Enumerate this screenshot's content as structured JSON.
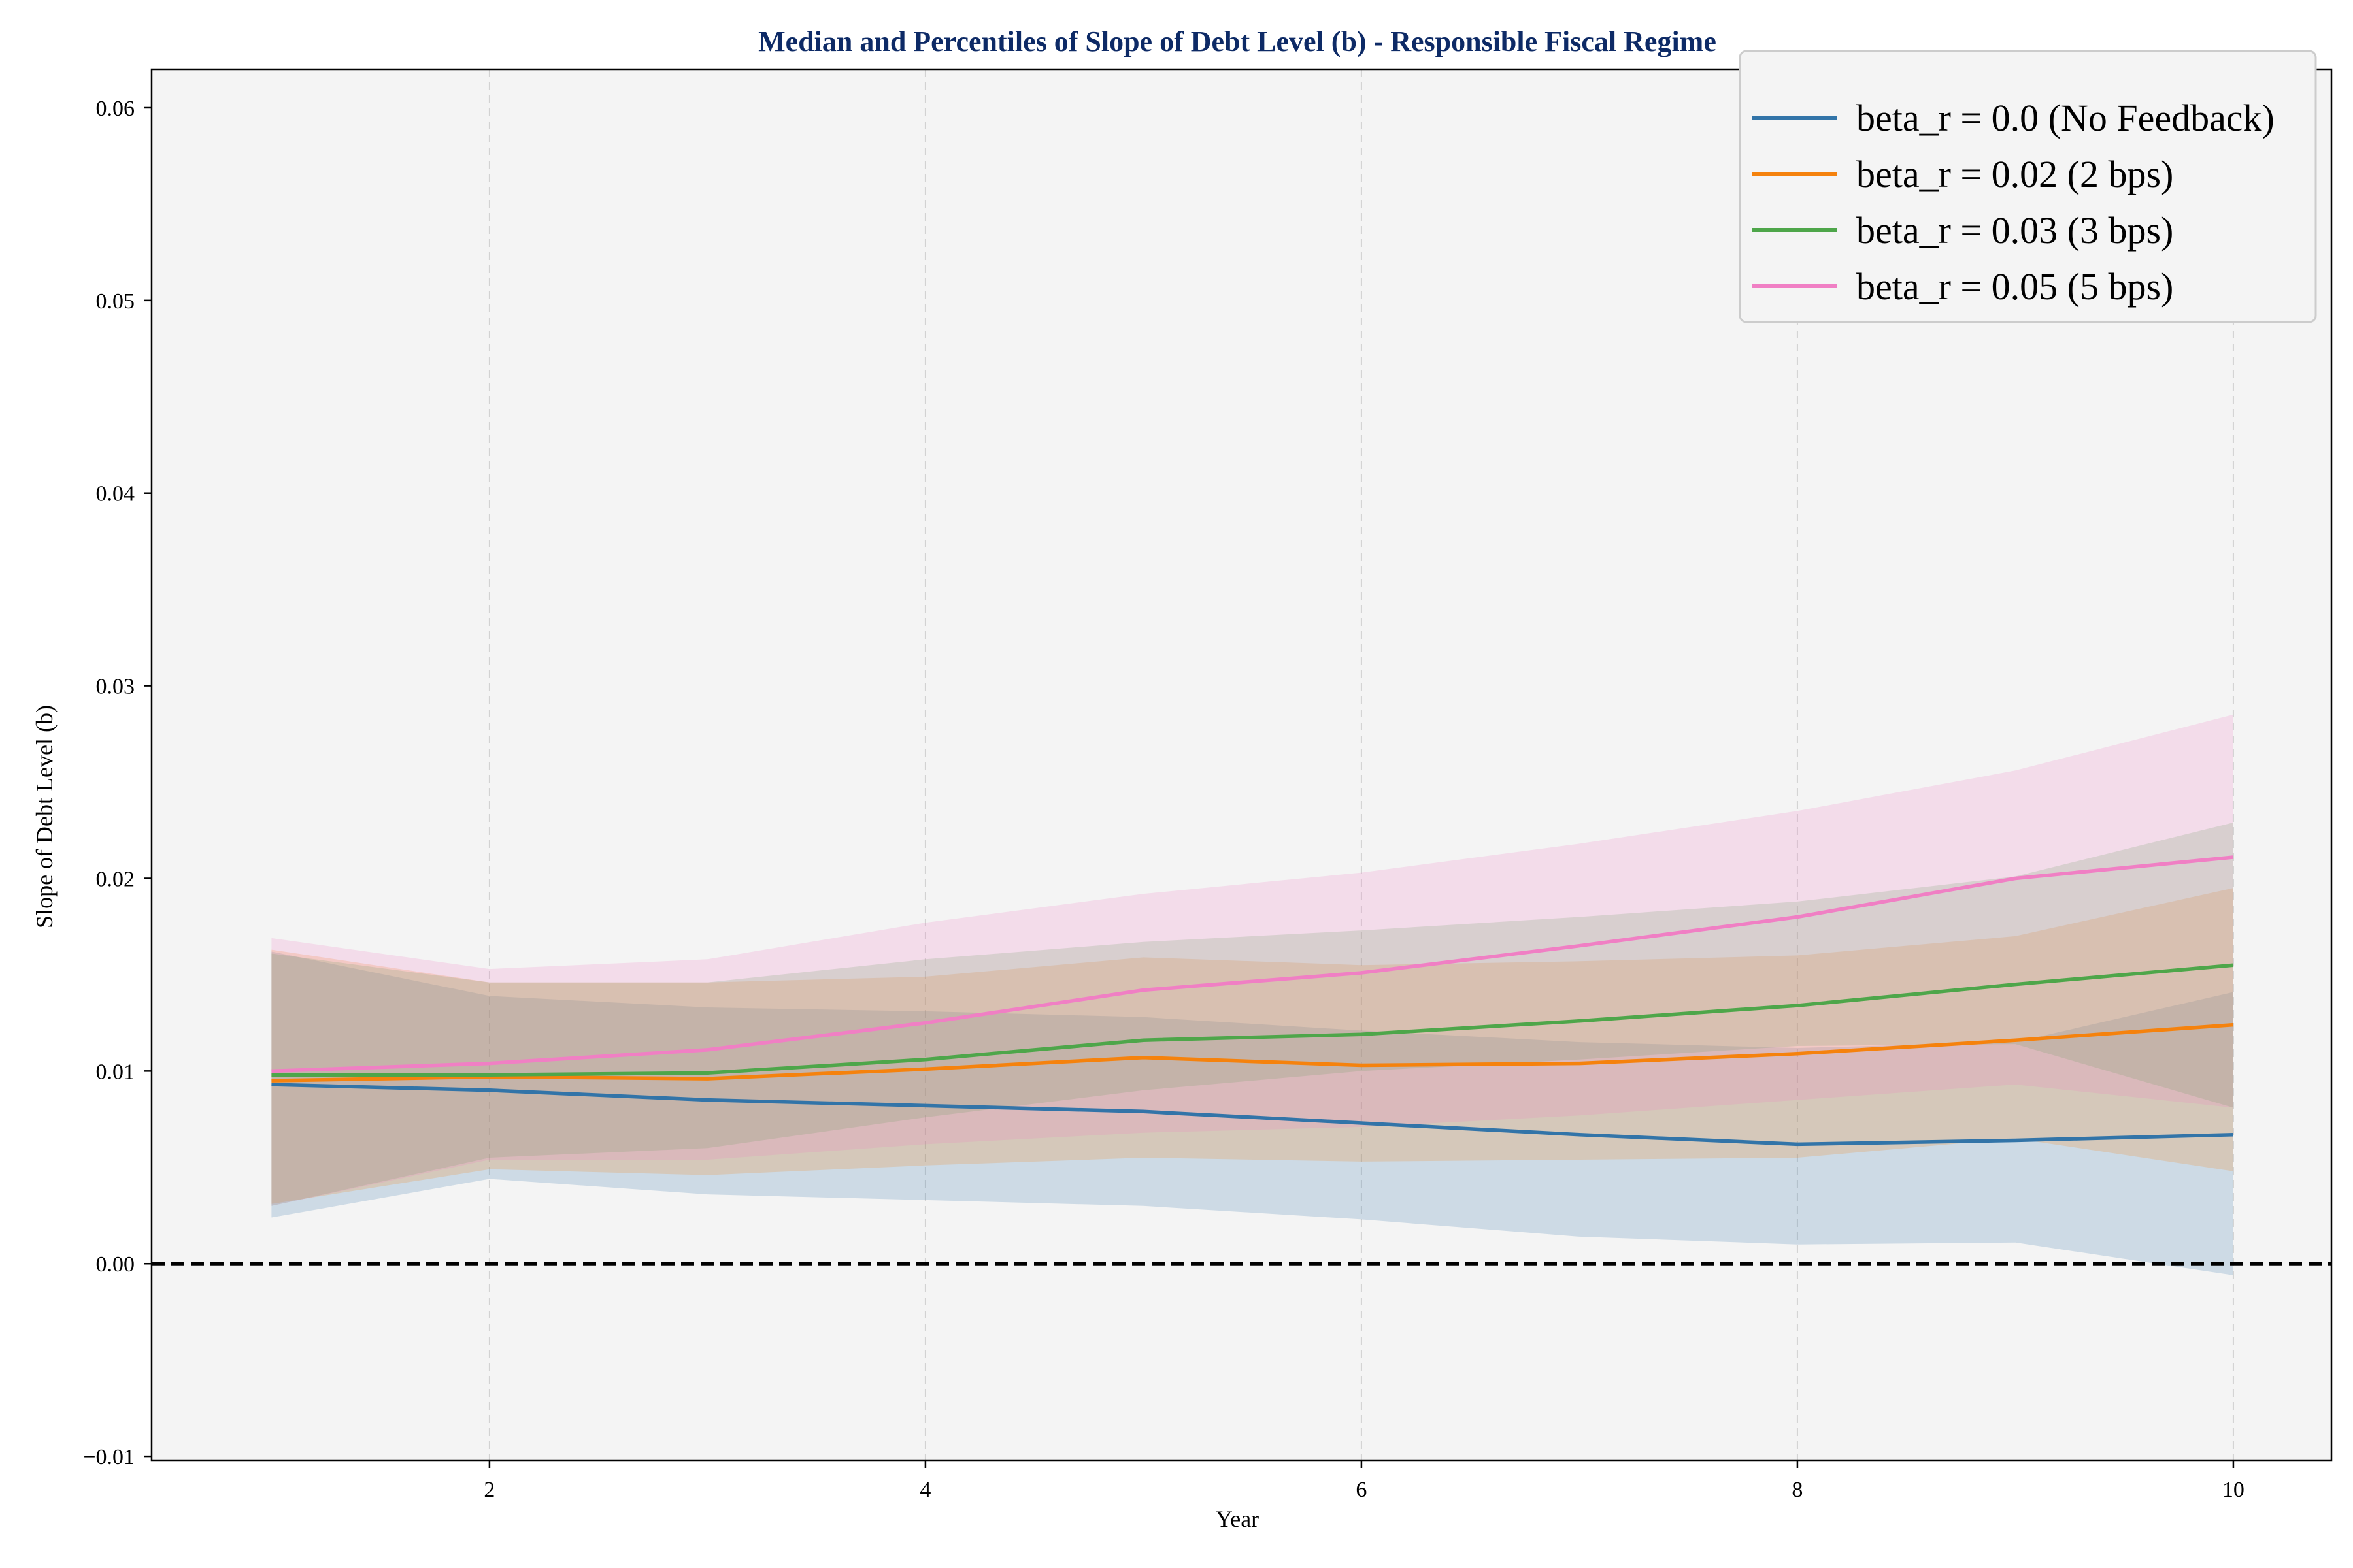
{
  "chart_data": {
    "type": "line",
    "title": "Median and Percentiles of Slope of Debt Level (b) - Responsible Fiscal Regime",
    "xlabel": "Year",
    "ylabel": "Slope of Debt Level (b)",
    "xlim": [
      0.45,
      10.45
    ],
    "ylim": [
      -0.0102,
      0.062
    ],
    "xticks": [
      2,
      4,
      6,
      8,
      10
    ],
    "xtick_labels": [
      "2",
      "4",
      "6",
      "8",
      "10"
    ],
    "yticks": [
      -0.01,
      0.0,
      0.01,
      0.02,
      0.03,
      0.04,
      0.05,
      0.06
    ],
    "ytick_labels": [
      "−0.01",
      "0.00",
      "0.01",
      "0.02",
      "0.03",
      "0.04",
      "0.05",
      "0.06"
    ],
    "grid": "x-dashed",
    "reference_line": {
      "y": 0.0,
      "style": "dashed",
      "color": "#000000"
    },
    "legend_position": "top-right",
    "background": "#f4f4f4",
    "x": [
      1,
      2,
      3,
      4,
      5,
      6,
      7,
      8,
      9,
      10
    ],
    "series": [
      {
        "name": "beta_r = 0.0 (No Feedback)",
        "color": "#3274a8",
        "median": [
          0.0093,
          0.009,
          0.0085,
          0.0082,
          0.0079,
          0.0073,
          0.0067,
          0.0062,
          0.0064,
          0.0067
        ],
        "lower": [
          0.0024,
          0.0044,
          0.0036,
          0.0033,
          0.003,
          0.0023,
          0.0014,
          0.001,
          0.0011,
          -0.0006
        ],
        "upper": [
          0.0162,
          0.0139,
          0.0133,
          0.0131,
          0.0128,
          0.0121,
          0.0115,
          0.0112,
          0.0115,
          0.0141
        ]
      },
      {
        "name": "beta_r = 0.02 (2 bps)",
        "color": "#f5820d",
        "median": [
          0.0095,
          0.0097,
          0.0096,
          0.0101,
          0.0107,
          0.0103,
          0.0104,
          0.0109,
          0.0116,
          0.0124
        ],
        "lower": [
          0.0031,
          0.0049,
          0.0046,
          0.0051,
          0.0055,
          0.0053,
          0.0054,
          0.0055,
          0.0065,
          0.0048
        ],
        "upper": [
          0.0163,
          0.0146,
          0.0146,
          0.0149,
          0.0159,
          0.0155,
          0.0157,
          0.016,
          0.017,
          0.0195
        ]
      },
      {
        "name": "beta_r = 0.03 (3 bps)",
        "color": "#4ea64a",
        "median": [
          0.0098,
          0.0098,
          0.0099,
          0.0106,
          0.0116,
          0.0119,
          0.0126,
          0.0134,
          0.0145,
          0.0155
        ],
        "lower": [
          0.003,
          0.0055,
          0.006,
          0.0076,
          0.009,
          0.01,
          0.0106,
          0.0113,
          0.0114,
          0.0081
        ],
        "upper": [
          0.0161,
          0.0146,
          0.0146,
          0.0158,
          0.0167,
          0.0173,
          0.018,
          0.0188,
          0.0201,
          0.0229
        ]
      },
      {
        "name": "beta_r = 0.05 (5 bps)",
        "color": "#f07fc4",
        "median": [
          0.01,
          0.0104,
          0.0111,
          0.0125,
          0.0142,
          0.0151,
          0.0165,
          0.018,
          0.02,
          0.0211
        ],
        "lower": [
          0.003,
          0.0054,
          0.0054,
          0.0062,
          0.0068,
          0.0071,
          0.0077,
          0.0085,
          0.0093,
          0.0081
        ],
        "upper": [
          0.0169,
          0.0153,
          0.0158,
          0.0177,
          0.0192,
          0.0203,
          0.0218,
          0.0235,
          0.0256,
          0.0285
        ]
      }
    ]
  }
}
